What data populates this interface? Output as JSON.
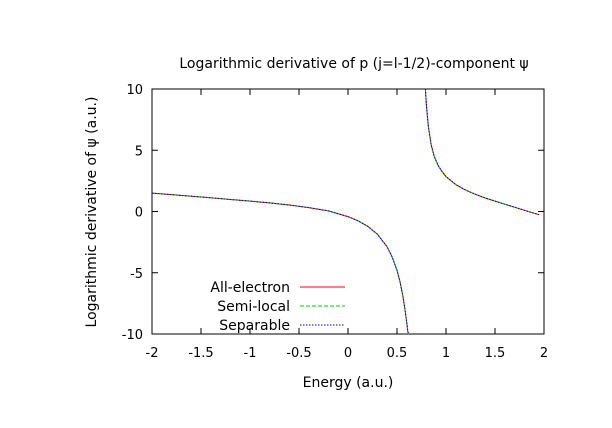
{
  "chart_data": {
    "type": "line",
    "title": "Logarithmic derivative of p (j=l-1/2)-component ψ",
    "xlabel": "Energy (a.u.)",
    "ylabel": "Logarithmic derivative of ψ (a.u.)",
    "xlim": [
      -2,
      2
    ],
    "ylim": [
      -10,
      10
    ],
    "xticks": [
      -2,
      -1.5,
      -1,
      -0.5,
      0,
      0.5,
      1,
      1.5,
      2
    ],
    "yticks": [
      -10,
      -5,
      0,
      5,
      10
    ],
    "xtick_labels": [
      "-2",
      "-1.5",
      "-1",
      "-0.5",
      "0",
      "0.5",
      "1",
      "1.5",
      "2"
    ],
    "ytick_labels": [
      "-10",
      "-5",
      "0",
      "5",
      "10"
    ],
    "grid": false,
    "legend_position": "bottom-left",
    "series": [
      {
        "name": "All-electron",
        "color": "#ff0000",
        "dash": "solid",
        "segments": [
          {
            "x": [
              -2.0,
              -1.8,
              -1.6,
              -1.4,
              -1.2,
              -1.0,
              -0.8,
              -0.6,
              -0.4,
              -0.2,
              0.0,
              0.1,
              0.2,
              0.3,
              0.4,
              0.45,
              0.5,
              0.53,
              0.56,
              0.58,
              0.6,
              0.61,
              0.62
            ],
            "y": [
              1.5,
              1.38,
              1.25,
              1.12,
              0.98,
              0.85,
              0.7,
              0.53,
              0.32,
              0.05,
              -0.42,
              -0.75,
              -1.2,
              -1.85,
              -2.9,
              -3.7,
              -4.8,
              -5.7,
              -6.9,
              -7.9,
              -9.1,
              -9.8,
              -10.0
            ]
          },
          {
            "x": [
              0.79,
              0.8,
              0.82,
              0.85,
              0.88,
              0.92,
              0.96,
              1.0,
              1.1,
              1.2,
              1.3,
              1.4,
              1.5,
              1.6,
              1.7,
              1.8,
              1.9,
              1.95
            ],
            "y": [
              10.0,
              8.7,
              6.9,
              5.4,
              4.5,
              3.75,
              3.25,
              2.85,
              2.2,
              1.75,
              1.4,
              1.1,
              0.85,
              0.6,
              0.35,
              0.1,
              -0.15,
              -0.25
            ]
          }
        ]
      },
      {
        "name": "Semi-local",
        "color": "#00cc00",
        "dash": "dashed",
        "segments": [
          {
            "x": [
              -2.0,
              -1.8,
              -1.6,
              -1.4,
              -1.2,
              -1.0,
              -0.8,
              -0.6,
              -0.4,
              -0.2,
              0.0,
              0.1,
              0.2,
              0.3,
              0.4,
              0.45,
              0.5,
              0.53,
              0.56,
              0.58,
              0.6,
              0.61,
              0.62
            ],
            "y": [
              1.5,
              1.38,
              1.25,
              1.12,
              0.98,
              0.85,
              0.7,
              0.53,
              0.32,
              0.05,
              -0.42,
              -0.75,
              -1.2,
              -1.85,
              -2.9,
              -3.7,
              -4.8,
              -5.7,
              -6.9,
              -7.9,
              -9.1,
              -9.8,
              -10.0
            ]
          },
          {
            "x": [
              0.79,
              0.8,
              0.82,
              0.85,
              0.88,
              0.92,
              0.96,
              1.0,
              1.1,
              1.2,
              1.3,
              1.4,
              1.5,
              1.6,
              1.7,
              1.8,
              1.9,
              1.95
            ],
            "y": [
              10.0,
              8.7,
              6.9,
              5.4,
              4.5,
              3.75,
              3.25,
              2.85,
              2.2,
              1.75,
              1.4,
              1.1,
              0.85,
              0.6,
              0.35,
              0.1,
              -0.15,
              -0.25
            ]
          }
        ]
      },
      {
        "name": "Separable",
        "color": "#0000cc",
        "dash": "dotted",
        "segments": [
          {
            "x": [
              -2.0,
              -1.8,
              -1.6,
              -1.4,
              -1.2,
              -1.0,
              -0.8,
              -0.6,
              -0.4,
              -0.2,
              0.0,
              0.1,
              0.2,
              0.3,
              0.4,
              0.45,
              0.5,
              0.53,
              0.56,
              0.58,
              0.6,
              0.61,
              0.62
            ],
            "y": [
              1.5,
              1.38,
              1.25,
              1.12,
              0.98,
              0.85,
              0.7,
              0.53,
              0.32,
              0.05,
              -0.42,
              -0.75,
              -1.2,
              -1.85,
              -2.9,
              -3.7,
              -4.8,
              -5.7,
              -6.9,
              -7.9,
              -9.1,
              -9.8,
              -10.0
            ]
          },
          {
            "x": [
              0.79,
              0.8,
              0.82,
              0.85,
              0.88,
              0.92,
              0.96,
              1.0,
              1.1,
              1.2,
              1.3,
              1.4,
              1.5,
              1.6,
              1.7,
              1.8,
              1.9,
              1.95
            ],
            "y": [
              10.0,
              8.7,
              6.9,
              5.4,
              4.5,
              3.75,
              3.25,
              2.85,
              2.2,
              1.75,
              1.4,
              1.1,
              0.85,
              0.6,
              0.35,
              0.1,
              -0.15,
              -0.25
            ]
          }
        ]
      }
    ]
  }
}
